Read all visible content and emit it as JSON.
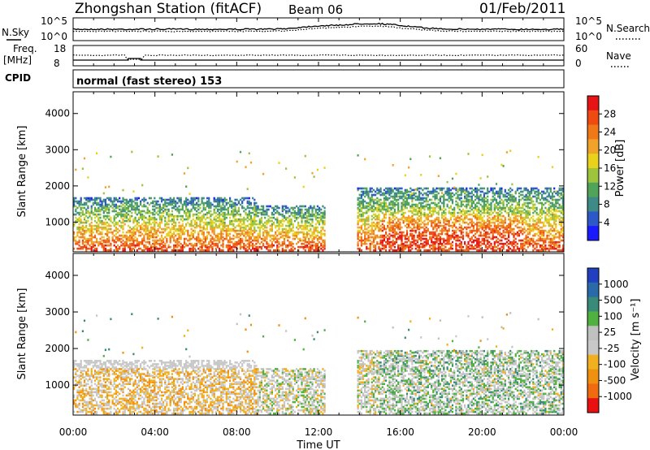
{
  "header": {
    "title": "Zhongshan Station (fitACF)",
    "beam": "Beam 06",
    "date": "01/Feb/2011"
  },
  "top_panels": {
    "noise": {
      "left_label": "N.Sky",
      "right_label": "N.Search",
      "left_ticks": [
        "10^5",
        "10^0"
      ],
      "right_ticks": [
        "10^5",
        "10^0"
      ]
    },
    "freq": {
      "left_label": "Freq.",
      "left_unit": "[MHz]",
      "right_label": "Nave",
      "left_ticks": [
        "18",
        "8"
      ],
      "right_ticks": [
        "60",
        "0"
      ]
    },
    "cpid": {
      "label": "CPID",
      "text": "normal (fast stereo) 153"
    }
  },
  "chart_data": [
    {
      "type": "heatmap",
      "name": "power",
      "ylabel": "Slant Range [km]",
      "ylim": [
        180,
        4600
      ],
      "y_ticks": [
        1000,
        2000,
        3000,
        4000
      ],
      "x": [
        "00:00",
        "04:00",
        "08:00",
        "12:00",
        "16:00",
        "20:00",
        "00:00"
      ],
      "xlim_hours": [
        0,
        24
      ],
      "colorbar": {
        "label": "Power [dB]",
        "ticks": [
          "4",
          "8",
          "12",
          "16",
          "20",
          "24",
          "28"
        ],
        "range": [
          0,
          30
        ],
        "colors": [
          "#1a1aff",
          "#2d58c8",
          "#3e8a86",
          "#4fa45a",
          "#9cc43c",
          "#e8d21c",
          "#f0a22a",
          "#f07818",
          "#ee4a12",
          "#e61414"
        ]
      }
    },
    {
      "type": "heatmap",
      "name": "velocity",
      "ylabel": "Slant Range [km]",
      "xlabel": "Time UT",
      "ylim": [
        180,
        4600
      ],
      "y_ticks": [
        1000,
        2000,
        3000,
        4000
      ],
      "x": [
        "00:00",
        "04:00",
        "08:00",
        "12:00",
        "16:00",
        "20:00",
        "00:00"
      ],
      "xlim_hours": [
        0,
        24
      ],
      "colorbar": {
        "label": "Velocity [m s^-1]",
        "ticks": [
          "1000",
          "500",
          "100",
          "25",
          "-25",
          "-100",
          "-500",
          "-1000"
        ],
        "range": [
          -1200,
          1200
        ],
        "colors": [
          "#2040c0",
          "#2a6aa8",
          "#3a8a7a",
          "#50b040",
          "#c0c0c0",
          "#c8c8c8",
          "#f0b020",
          "#f09010",
          "#f06a10",
          "#e81010"
        ]
      }
    }
  ]
}
